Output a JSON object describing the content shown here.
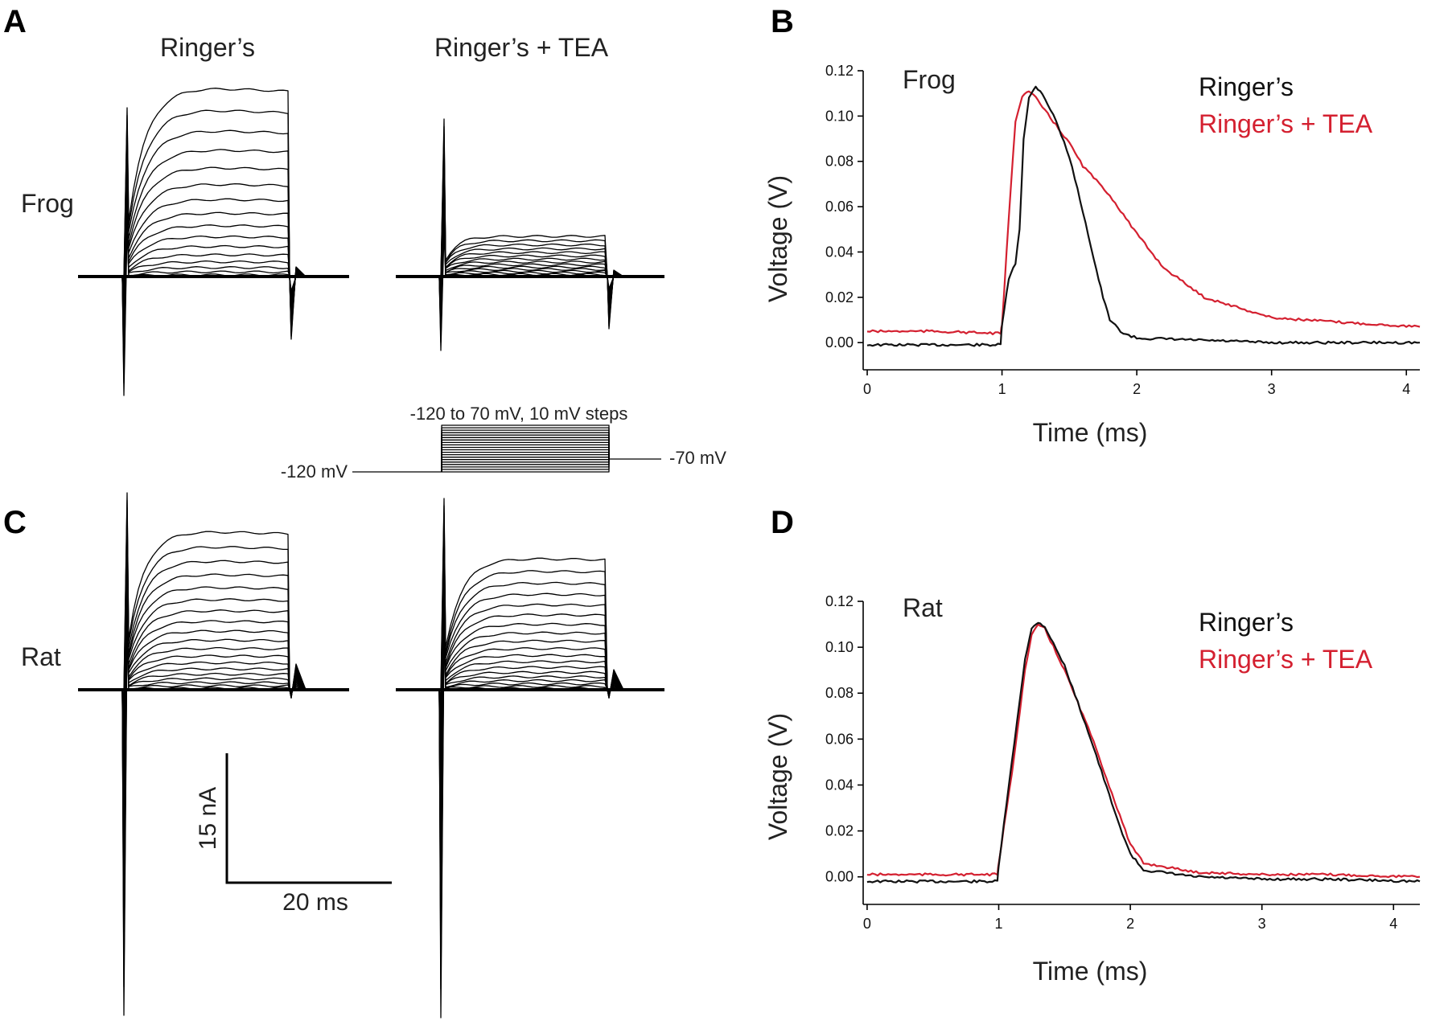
{
  "panel_letters": {
    "a": "A",
    "b": "B",
    "c": "C",
    "d": "D"
  },
  "panel_a": {
    "col_left": "Ringer’s",
    "col_right": "Ringer’s + TEA",
    "row_frog": "Frog",
    "protocol": {
      "steps_label": "-120 to 70 mV, 10 mV steps",
      "holding_label": "-120 mV",
      "post_label": "-70 mV"
    }
  },
  "panel_c": {
    "row_rat": "Rat",
    "scale_bar": {
      "current": "15 nA",
      "time": "20 ms"
    }
  },
  "colors": {
    "ringers": "#111111",
    "tea": "#d42030"
  },
  "chart_data": [
    {
      "panel": "B",
      "type": "line",
      "annotation": "Frog",
      "xlabel": "Time (ms)",
      "ylabel": "Voltage (V)",
      "xlim": [
        -0.03,
        4.1
      ],
      "ylim": [
        -0.012,
        0.12
      ],
      "xticks": [
        0,
        1,
        2,
        3,
        4
      ],
      "yticks": [
        0.0,
        0.02,
        0.04,
        0.06,
        0.08,
        0.1,
        0.12
      ],
      "ytick_labels": [
        "0.00",
        "0.02",
        "0.04",
        "0.06",
        "0.08",
        "0.10",
        "0.12"
      ],
      "legend": [
        "Ringer’s",
        "Ringer’s + TEA"
      ],
      "legend_position": "top-right",
      "series": [
        {
          "name": "Ringer’s",
          "color": "#111111",
          "x": [
            0,
            0.5,
            0.99,
            1.0,
            1.05,
            1.1,
            1.13,
            1.16,
            1.2,
            1.25,
            1.3,
            1.4,
            1.5,
            1.6,
            1.7,
            1.75,
            1.8,
            1.9,
            2.0,
            2.5,
            3.0,
            3.5,
            4.1
          ],
          "y": [
            -0.001,
            -0.001,
            -0.001,
            0.008,
            0.028,
            0.035,
            0.05,
            0.09,
            0.108,
            0.113,
            0.11,
            0.098,
            0.082,
            0.058,
            0.032,
            0.02,
            0.01,
            0.004,
            0.002,
            0.001,
            0.0,
            0.0,
            0.0
          ]
        },
        {
          "name": "Ringer’s + TEA",
          "color": "#d42030",
          "x": [
            0,
            0.5,
            0.99,
            1.0,
            1.05,
            1.1,
            1.15,
            1.2,
            1.25,
            1.3,
            1.4,
            1.5,
            1.6,
            1.8,
            2.0,
            2.2,
            2.5,
            3.0,
            3.5,
            4.1
          ],
          "y": [
            0.005,
            0.005,
            0.004,
            0.008,
            0.055,
            0.098,
            0.109,
            0.111,
            0.108,
            0.104,
            0.096,
            0.088,
            0.078,
            0.065,
            0.048,
            0.033,
            0.02,
            0.011,
            0.009,
            0.007
          ]
        }
      ]
    },
    {
      "panel": "D",
      "type": "line",
      "annotation": "Rat",
      "xlabel": "Time (ms)",
      "ylabel": "Voltage (V)",
      "xlim": [
        -0.03,
        4.2
      ],
      "ylim": [
        -0.012,
        0.12
      ],
      "xticks": [
        0,
        1,
        2,
        3,
        4
      ],
      "yticks": [
        0.0,
        0.02,
        0.04,
        0.06,
        0.08,
        0.1,
        0.12
      ],
      "ytick_labels": [
        "0.00",
        "0.02",
        "0.04",
        "0.06",
        "0.08",
        "0.10",
        "0.12"
      ],
      "legend": [
        "Ringer’s",
        "Ringer’s + TEA"
      ],
      "legend_position": "top-right",
      "series": [
        {
          "name": "Ringer’s",
          "color": "#111111",
          "x": [
            0,
            0.5,
            0.99,
            1.0,
            1.1,
            1.2,
            1.25,
            1.3,
            1.35,
            1.5,
            1.7,
            1.9,
            2.0,
            2.1,
            2.5,
            3.0,
            3.5,
            4.2
          ],
          "y": [
            -0.002,
            -0.002,
            -0.002,
            0.005,
            0.05,
            0.095,
            0.108,
            0.111,
            0.109,
            0.092,
            0.06,
            0.025,
            0.01,
            0.003,
            0.0,
            -0.001,
            -0.001,
            -0.002
          ]
        },
        {
          "name": "Ringer’s + TEA",
          "color": "#d42030",
          "x": [
            0,
            0.5,
            0.99,
            1.0,
            1.1,
            1.2,
            1.25,
            1.3,
            1.35,
            1.5,
            1.7,
            1.9,
            2.0,
            2.1,
            2.5,
            3.0,
            3.5,
            4.2
          ],
          "y": [
            0.001,
            0.001,
            0.001,
            0.006,
            0.045,
            0.09,
            0.105,
            0.11,
            0.108,
            0.09,
            0.062,
            0.03,
            0.014,
            0.006,
            0.002,
            0.001,
            0.001,
            0.0
          ]
        }
      ]
    }
  ]
}
